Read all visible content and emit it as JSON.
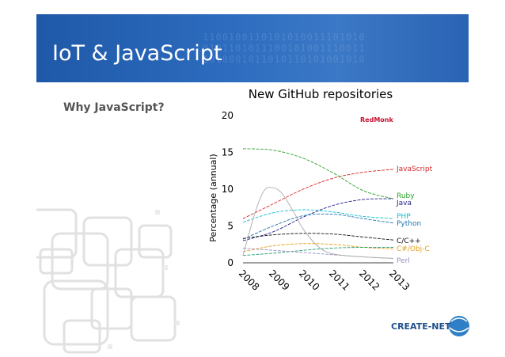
{
  "slide": {
    "title": "IoT & JavaScript",
    "subtitle": "Why JavaScript?",
    "logo_text": "CREATE-NET",
    "banner_binary": "1100100110101010011101010\n0101101011100101001110011\n1010001011010110101001010"
  },
  "colors": {
    "banner": "#2a63b3",
    "title_text": "#ffffff",
    "subtitle_text": "#555555"
  },
  "chart_data": {
    "type": "line",
    "title": "New GitHub repositories",
    "ylabel": "Percentage (annual)",
    "xlabel": "",
    "brand_label": "RedMonk",
    "ylim": [
      0,
      20
    ],
    "xlim": [
      2008,
      2013
    ],
    "yticks": [
      0,
      5,
      10,
      15,
      20
    ],
    "x": [
      "2008",
      "2009",
      "2010",
      "2011",
      "2012",
      "2013"
    ],
    "series": [
      {
        "name": "JavaScript",
        "color": "#d62728",
        "points": [
          [
            2008,
            6.0
          ],
          [
            2009,
            8.0
          ],
          [
            2010,
            10.0
          ],
          [
            2011,
            11.5
          ],
          [
            2012,
            12.3
          ],
          [
            2013,
            12.7
          ]
        ]
      },
      {
        "name": "Ruby",
        "color": "#2ca02c",
        "points": [
          [
            2008,
            15.5
          ],
          [
            2009,
            15.3
          ],
          [
            2010,
            14.2
          ],
          [
            2011,
            12.2
          ],
          [
            2012,
            9.8
          ],
          [
            2013,
            8.7
          ]
        ]
      },
      {
        "name": "Java",
        "color": "#1f1f8a",
        "points": [
          [
            2008,
            3.0
          ],
          [
            2009,
            4.2
          ],
          [
            2010,
            6.2
          ],
          [
            2011,
            7.8
          ],
          [
            2012,
            8.6
          ],
          [
            2013,
            8.7
          ]
        ]
      },
      {
        "name": "PHP",
        "color": "#17becf",
        "points": [
          [
            2008,
            5.5
          ],
          [
            2009,
            6.8
          ],
          [
            2010,
            7.2
          ],
          [
            2011,
            6.9
          ],
          [
            2012,
            6.3
          ],
          [
            2013,
            6.0
          ]
        ]
      },
      {
        "name": "Python",
        "color": "#1f77b4",
        "points": [
          [
            2008,
            3.2
          ],
          [
            2009,
            5.0
          ],
          [
            2010,
            6.4
          ],
          [
            2011,
            6.6
          ],
          [
            2012,
            6.0
          ],
          [
            2013,
            5.4
          ]
        ]
      },
      {
        "name": "C/C++",
        "color": "#111111",
        "points": [
          [
            2008,
            3.3
          ],
          [
            2009,
            3.8
          ],
          [
            2010,
            4.0
          ],
          [
            2011,
            3.9
          ],
          [
            2012,
            3.5
          ],
          [
            2013,
            3.1
          ]
        ]
      },
      {
        "name": "C#/Obj-C",
        "color": "#e6a01a",
        "points": [
          [
            2008,
            1.5
          ],
          [
            2009,
            2.3
          ],
          [
            2010,
            2.6
          ],
          [
            2011,
            2.5
          ],
          [
            2012,
            2.1
          ],
          [
            2013,
            1.9
          ]
        ]
      },
      {
        "name": "",
        "color": "#2aa07a",
        "points": [
          [
            2008,
            1.0
          ],
          [
            2009,
            1.3
          ],
          [
            2010,
            1.7
          ],
          [
            2011,
            2.0
          ],
          [
            2012,
            2.1
          ],
          [
            2013,
            2.1
          ]
        ]
      },
      {
        "name": "Perl",
        "color": "#9b8fc4",
        "points": [
          [
            2008,
            2.0
          ],
          [
            2009,
            1.7
          ],
          [
            2010,
            1.4
          ],
          [
            2011,
            1.1
          ],
          [
            2012,
            0.8
          ],
          [
            2013,
            0.6
          ]
        ]
      },
      {
        "name": "",
        "color": "#aaaaaa",
        "points": [
          [
            2008,
            1.0
          ],
          [
            2008.4,
            6.8
          ],
          [
            2008.7,
            9.8
          ],
          [
            2009.0,
            10.2
          ],
          [
            2009.3,
            9.4
          ],
          [
            2009.7,
            6.8
          ],
          [
            2010.0,
            4.6
          ],
          [
            2010.5,
            2.2
          ],
          [
            2011.0,
            1.2
          ],
          [
            2012.0,
            0.8
          ],
          [
            2013.0,
            0.6
          ]
        ]
      }
    ]
  }
}
